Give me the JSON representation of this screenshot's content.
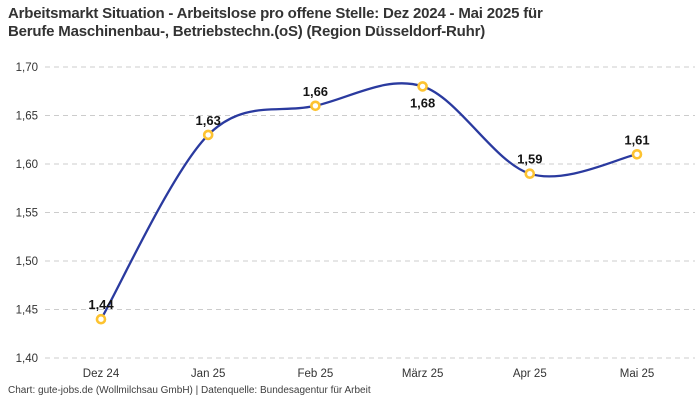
{
  "header": {
    "title_line1": "Arbeitsmarkt Situation - Arbeitslose pro offene Stelle: Dez 2024 - Mai 2025 für",
    "title_line2": "Berufe Maschinenbau-, Betriebstechn.(oS) (Region Düsseldorf-Ruhr)"
  },
  "footer": {
    "credit": "Chart: gute-jobs.de (Wollmilchsau GmbH) | Datenquelle: Bundesagentur für Arbeit"
  },
  "chart_data": {
    "type": "line",
    "title": "Arbeitsmarkt Situation - Arbeitslose pro offene Stelle: Dez 2024 - Mai 2025 für Berufe Maschinenbau-, Betriebstechn.(oS) (Region Düsseldorf-Ruhr)",
    "categories": [
      "Dez 24",
      "Jan 25",
      "Feb 25",
      "März 25",
      "Apr 25",
      "Mai 25"
    ],
    "values": [
      1.44,
      1.63,
      1.66,
      1.68,
      1.59,
      1.61
    ],
    "value_labels": [
      "1,44",
      "1,63",
      "1,66",
      "1,68",
      "1,59",
      "1,61"
    ],
    "label_placement": [
      "above",
      "above",
      "above",
      "below",
      "above",
      "above"
    ],
    "series_name": "Arbeitslose pro offene Stelle",
    "xlabel": "",
    "ylabel": "",
    "ylim": [
      1.4,
      1.7
    ],
    "yticks": [
      {
        "value": 1.4,
        "label": "1,40"
      },
      {
        "value": 1.45,
        "label": "1,45"
      },
      {
        "value": 1.5,
        "label": "1,50"
      },
      {
        "value": 1.55,
        "label": "1,55"
      },
      {
        "value": 1.6,
        "label": "1,60"
      },
      {
        "value": 1.65,
        "label": "1,65"
      },
      {
        "value": 1.7,
        "label": "1,70"
      }
    ],
    "grid": "horizontal-dashed",
    "legend": "none",
    "curve": "smooth",
    "colors": {
      "line": "#2a3a9f",
      "marker_ring": "#fdc331",
      "marker_fill": "#ffffff",
      "grid": "#cccccc",
      "tick_text": "#333333",
      "data_label": "#141414",
      "title_text": "#333333"
    }
  }
}
